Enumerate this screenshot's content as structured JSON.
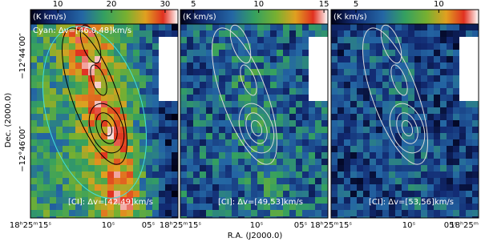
{
  "panels": [
    {
      "colorbar": {
        "unit": "(K km/s)",
        "range": [
          4.9,
          32.4
        ],
        "ticks": [
          10,
          20,
          30
        ]
      },
      "top_label": "Cyan: Δv=[46.0,48]km/s",
      "bottom_label": "[CI]: Δv=[42,49]km/s",
      "x_ticks": [
        "18ʰ25ᵐ15ˢ",
        "10ˢ",
        "05ˢ"
      ]
    },
    {
      "colorbar": {
        "unit": "(K km/s)",
        "range": [
          4.0,
          15.3
        ],
        "ticks": [
          5,
          10,
          15
        ]
      },
      "bottom_label": "[CI]: Δv=[49,53]km/s",
      "x_ticks": [
        "18ʰ25ᵐ15ˢ",
        "10ˢ",
        "05ˢ"
      ]
    },
    {
      "colorbar": {
        "unit": "(K km/s)",
        "range": [
          3.5,
          12.4
        ],
        "ticks": [
          5,
          10
        ]
      },
      "bottom_label": "[CI]: Δv=[53,56]km/s",
      "x_ticks": [
        "18ʰ25ᵐ15ˢ",
        "10ˢ",
        "05ˢ",
        "18ʰ25ᵐ"
      ]
    }
  ],
  "y_axis": {
    "label": "Dec. (2000.0)",
    "ticks": [
      "−12°44′00″",
      "−12°46′00″"
    ]
  },
  "x_axis": {
    "label": "R.A. (J2000.0)"
  }
}
